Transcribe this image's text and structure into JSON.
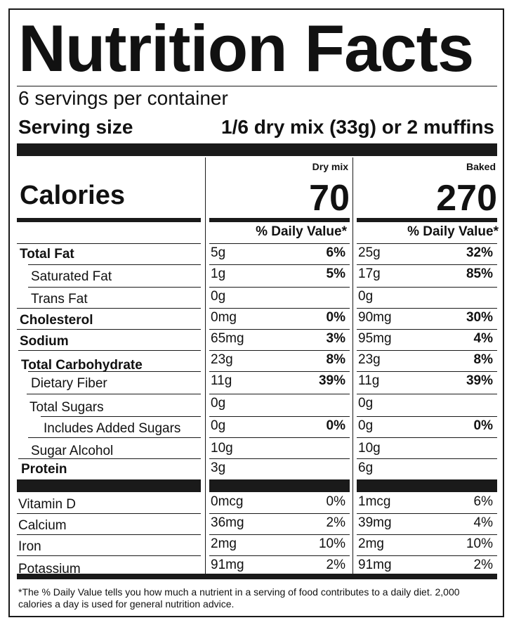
{
  "title": "Nutrition Facts",
  "servings_per_container": "6 servings per container",
  "serving_size_label": "Serving size",
  "serving_size_value": "1/6 dry mix (33g) or 2 muffins",
  "calories_label": "Calories",
  "columns": [
    {
      "header": "Dry mix",
      "calories": "70",
      "dv_header": "% Daily Value*"
    },
    {
      "header": "Baked",
      "calories": "270",
      "dv_header": "% Daily Value*"
    }
  ],
  "nutrients": [
    {
      "name": "Total Fat",
      "bold": true,
      "dry": "5g",
      "dry_pct": "6%",
      "baked": "25g",
      "baked_pct": "32%"
    },
    {
      "name": "Saturated Fat",
      "bold": false,
      "dry": "1g",
      "dry_pct": "5%",
      "baked": "17g",
      "baked_pct": "85%"
    },
    {
      "name": "Trans Fat",
      "bold": false,
      "dry": "0g",
      "dry_pct": "",
      "baked": "0g",
      "baked_pct": ""
    },
    {
      "name": "Cholesterol",
      "bold": true,
      "dry": "0mg",
      "dry_pct": "0%",
      "baked": "90mg",
      "baked_pct": "30%"
    },
    {
      "name": "Sodium",
      "bold": true,
      "dry": "65mg",
      "dry_pct": "3%",
      "baked": "95mg",
      "baked_pct": "4%"
    },
    {
      "name": "Total Carbohydrate",
      "bold": true,
      "dry": "23g",
      "dry_pct": "8%",
      "baked": "23g",
      "baked_pct": "8%"
    },
    {
      "name": "Dietary Fiber",
      "bold": false,
      "dry": "11g",
      "dry_pct": "39%",
      "baked": "11g",
      "baked_pct": "39%"
    },
    {
      "name": "Total Sugars",
      "bold": false,
      "dry": "0g",
      "dry_pct": "",
      "baked": "0g",
      "baked_pct": ""
    },
    {
      "name": "Includes Added Sugars",
      "bold": false,
      "dry": "0g",
      "dry_pct": "0%",
      "baked": "0g",
      "baked_pct": "0%"
    },
    {
      "name": "Sugar Alcohol",
      "bold": false,
      "dry": "10g",
      "dry_pct": "",
      "baked": "10g",
      "baked_pct": ""
    },
    {
      "name": "Protein",
      "bold": true,
      "dry": "3g",
      "dry_pct": "",
      "baked": "6g",
      "baked_pct": ""
    }
  ],
  "vitamins": [
    {
      "name": "Vitamin D",
      "dry": "0mcg",
      "dry_pct": "0%",
      "baked": "1mcg",
      "baked_pct": "6%"
    },
    {
      "name": "Calcium",
      "dry": "36mg",
      "dry_pct": "2%",
      "baked": "39mg",
      "baked_pct": "4%"
    },
    {
      "name": "Iron",
      "dry": "2mg",
      "dry_pct": "10%",
      "baked": "2mg",
      "baked_pct": "10%"
    },
    {
      "name": "Potassium",
      "dry": "91mg",
      "dry_pct": "2%",
      "baked": "91mg",
      "baked_pct": "2%"
    }
  ],
  "footnote": "*The % Daily Value tells you how much a nutrient in a serving of food contributes to a daily diet. 2,000 calories a day is used for general nutrition advice."
}
